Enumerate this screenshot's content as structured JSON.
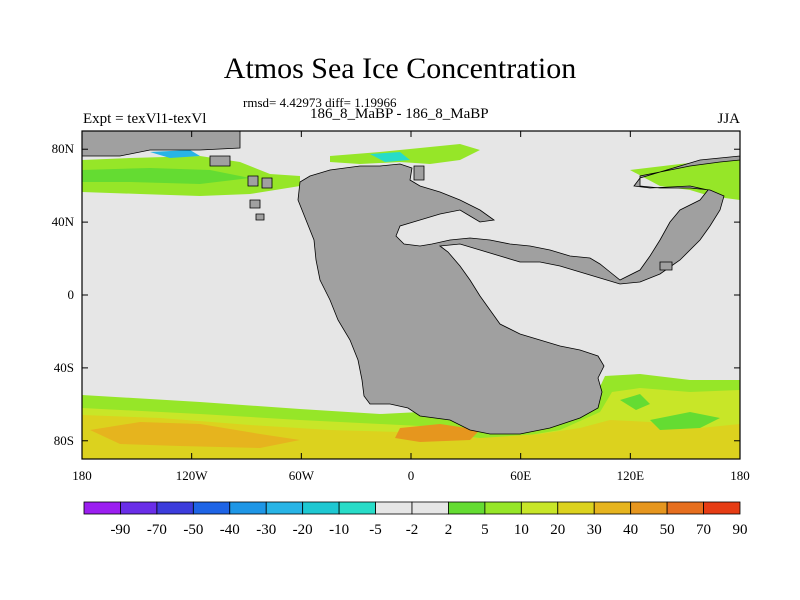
{
  "title": "Atmos Sea Ice Concentration",
  "stats_line": "rmsd= 4.42973  diff= 1.19966",
  "left_label": "Expt = texVl1-texVl",
  "center_label": "186_8_MaBP - 186_8_MaBP",
  "right_label": "JJA",
  "map": {
    "projection": "cylindrical-equidistant",
    "lon_range": [
      -180,
      180
    ],
    "lat_range": [
      -90,
      90
    ],
    "x_ticks": [
      "180",
      "120W",
      "60W",
      "0",
      "60E",
      "120E",
      "180"
    ],
    "y_ticks": [
      "80N",
      "40N",
      "0",
      "40S",
      "80S"
    ],
    "land_color": "#a0a0a0",
    "ocean_no_change_color": "#e6e6e6"
  },
  "colorbar": {
    "labels": [
      "-90",
      "-70",
      "-50",
      "-40",
      "-30",
      "-20",
      "-10",
      "-5",
      "-2",
      "2",
      "5",
      "10",
      "20",
      "30",
      "40",
      "50",
      "70",
      "90"
    ],
    "colors": [
      "#9b1ef0",
      "#6a2ee8",
      "#3c3cdc",
      "#1e64e6",
      "#1e96e6",
      "#28b4e6",
      "#1ec8d2",
      "#28dcc8",
      "#e6e6e6",
      "#e6e6e6",
      "#64dc32",
      "#96e628",
      "#c8e628",
      "#dcd21e",
      "#e6b41e",
      "#e6961e",
      "#e66e1e",
      "#e63c14"
    ]
  }
}
